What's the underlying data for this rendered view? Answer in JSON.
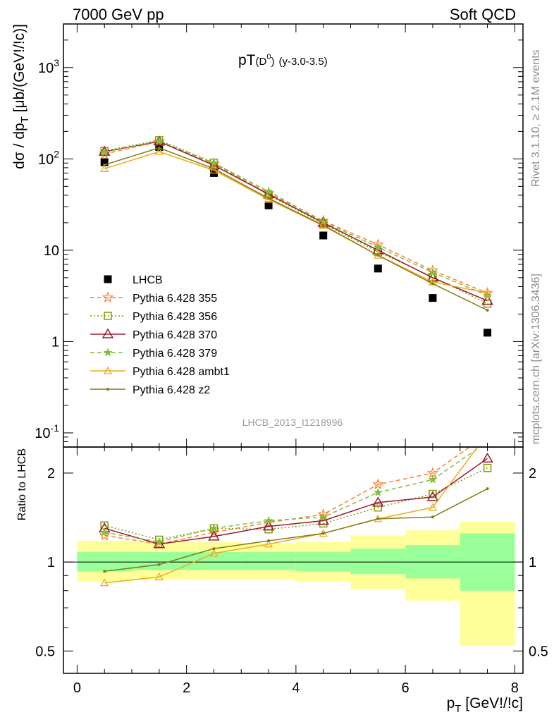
{
  "header": {
    "energy_label": "7000 GeV pp",
    "process_label": "Soft QCD"
  },
  "side_labels": {
    "rivet": "Rivet 3.1.10, ≥ 2.1M events",
    "source": "mcplots.cern.ch [arXiv:1306.3436]"
  },
  "plot_title": {
    "main": "pT",
    "particle": "(D",
    "particle_sup": "0",
    "particle_close": ")",
    "range": "(y-3.0-3.5)"
  },
  "analysis_id": "LHCB_2013_I1218996",
  "chart_data": [
    {
      "type": "line",
      "panel": "main",
      "ylabel": "dσ / dp_T [μb/(GeV!/!c)]",
      "yscale": "log",
      "ylim": [
        0.07,
        3000
      ],
      "xlim": [
        -0.25,
        8.15
      ],
      "ytick_labels": [
        "10^-1",
        "1",
        "10",
        "10^2",
        "10^3"
      ],
      "x": [
        0.5,
        1.5,
        2.5,
        3.5,
        4.5,
        5.5,
        6.5,
        7.5
      ],
      "series": [
        {
          "name": "LHCB",
          "color": "#000000",
          "marker": "square",
          "style": "points",
          "values": [
            92,
            135,
            70,
            31,
            14.5,
            6.3,
            3.0,
            1.25
          ]
        },
        {
          "name": "Pythia 6.428 355",
          "color": "#ff7f2a",
          "marker": "star",
          "style": "dashed",
          "values": [
            113,
            155,
            88,
            42,
            21,
            11.5,
            6.0,
            3.4
          ]
        },
        {
          "name": "Pythia 6.428 356",
          "color": "#7f9f00",
          "marker": "open-square",
          "style": "dotted",
          "values": [
            122,
            160,
            91,
            40,
            19.5,
            9.6,
            5.1,
            2.6
          ]
        },
        {
          "name": "Pythia 6.428 370",
          "color": "#9b1b30",
          "marker": "open-triangle",
          "style": "solid",
          "values": [
            120,
            155,
            85,
            41,
            20,
            10.0,
            5.0,
            2.8
          ]
        },
        {
          "name": "Pythia 6.428 379",
          "color": "#7fbf3f",
          "marker": "star-small",
          "style": "dashed",
          "values": [
            118,
            158,
            90,
            44,
            20.5,
            10.8,
            5.7,
            3.2
          ]
        },
        {
          "name": "Pythia 6.428 ambt1",
          "color": "#f0a820",
          "marker": "open-triangle-small",
          "style": "solid",
          "values": [
            78,
            120,
            75,
            36,
            18.5,
            8.8,
            4.5,
            3.4
          ]
        },
        {
          "name": "Pythia 6.428 z2",
          "color": "#7f7f10",
          "marker": "dot",
          "style": "solid",
          "values": [
            86,
            132,
            78,
            37,
            18.8,
            8.8,
            4.3,
            2.2
          ]
        }
      ]
    },
    {
      "type": "line",
      "panel": "ratio",
      "xlabel": "p_T [GeV!/!c]",
      "ylabel": "Ratio to LHCB",
      "yscale": "log",
      "ylim": [
        0.42,
        2.45
      ],
      "xlim": [
        -0.25,
        8.15
      ],
      "xtick_labels": [
        "0",
        "2",
        "4",
        "6",
        "8"
      ],
      "ytick_labels": [
        "0.5",
        "1",
        "2"
      ],
      "x": [
        0.5,
        1.5,
        2.5,
        3.5,
        4.5,
        5.5,
        6.5,
        7.5
      ],
      "bands": {
        "bins": [
          0,
          1,
          2,
          3,
          4,
          5,
          6,
          7,
          8
        ],
        "inner_lo": [
          0.93,
          0.94,
          0.94,
          0.94,
          0.93,
          0.91,
          0.88,
          0.8
        ],
        "inner_hi": [
          1.08,
          1.08,
          1.08,
          1.08,
          1.08,
          1.11,
          1.14,
          1.25
        ],
        "outer_lo": [
          0.86,
          0.87,
          0.87,
          0.87,
          0.86,
          0.81,
          0.74,
          0.52
        ],
        "outer_hi": [
          1.18,
          1.17,
          1.17,
          1.16,
          1.17,
          1.23,
          1.28,
          1.37
        ]
      },
      "series": [
        {
          "name": "Pythia 6.428 355",
          "values": [
            1.23,
            1.15,
            1.26,
            1.36,
            1.45,
            1.83,
            2.0,
            2.7
          ]
        },
        {
          "name": "Pythia 6.428 356",
          "values": [
            1.33,
            1.19,
            1.3,
            1.29,
            1.35,
            1.53,
            1.7,
            2.08
          ]
        },
        {
          "name": "Pythia 6.428 370",
          "values": [
            1.3,
            1.15,
            1.22,
            1.32,
            1.38,
            1.59,
            1.66,
            2.24
          ]
        },
        {
          "name": "Pythia 6.428 379",
          "values": [
            1.26,
            1.17,
            1.3,
            1.38,
            1.42,
            1.72,
            1.9,
            2.55
          ]
        },
        {
          "name": "Pythia 6.428 ambt1",
          "values": [
            0.85,
            0.89,
            1.07,
            1.15,
            1.25,
            1.4,
            1.53,
            2.72
          ]
        },
        {
          "name": "Pythia 6.428 z2",
          "values": [
            0.93,
            0.98,
            1.11,
            1.18,
            1.25,
            1.4,
            1.42,
            1.77
          ]
        }
      ]
    }
  ]
}
